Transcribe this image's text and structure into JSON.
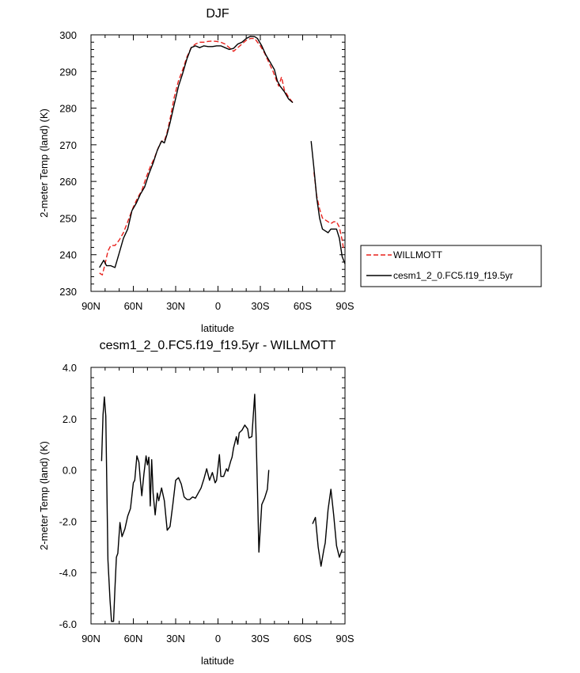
{
  "chart_data": [
    {
      "type": "line",
      "title": "DJF",
      "xlabel": "latitude",
      "ylabel": "2-meter Temp (land) (K)",
      "xlim": [
        90,
        -90
      ],
      "ylim": [
        230,
        300
      ],
      "x_tick_labels": [
        {
          "value": 90,
          "label": "90N"
        },
        {
          "value": 60,
          "label": "60N"
        },
        {
          "value": 30,
          "label": "30N"
        },
        {
          "value": 0,
          "label": "0"
        },
        {
          "value": -30,
          "label": "30S"
        },
        {
          "value": -60,
          "label": "60S"
        },
        {
          "value": -90,
          "label": "90S"
        }
      ],
      "y_tick_labels": [
        {
          "value": 230,
          "label": "230"
        },
        {
          "value": 240,
          "label": "240"
        },
        {
          "value": 250,
          "label": "250"
        },
        {
          "value": 260,
          "label": "260"
        },
        {
          "value": 270,
          "label": "270"
        },
        {
          "value": 280,
          "label": "280"
        },
        {
          "value": 290,
          "label": "290"
        },
        {
          "value": 300,
          "label": "300"
        }
      ],
      "legend_position": "right",
      "series": [
        {
          "name": "WILLMOTT",
          "color": "#e8211c",
          "dashed": true,
          "segments": [
            [
              [
                84,
                235
              ],
              [
                82,
                234.5
              ],
              [
                80,
                237.5
              ],
              [
                78,
                241
              ],
              [
                76,
                242.5
              ],
              [
                73,
                242.5
              ],
              [
                70,
                244
              ],
              [
                67,
                246
              ],
              [
                64,
                249
              ],
              [
                62,
                251
              ],
              [
                60,
                253
              ],
              [
                57,
                255.5
              ],
              [
                54,
                257.5
              ],
              [
                51,
                261
              ],
              [
                48,
                264
              ],
              [
                45,
                266.5
              ],
              [
                42,
                269.5
              ],
              [
                40,
                271
              ],
              [
                38,
                271
              ],
              [
                36,
                273.5
              ],
              [
                34,
                277
              ],
              [
                31,
                283
              ],
              [
                28,
                287.5
              ],
              [
                25,
                290.5
              ],
              [
                22,
                294
              ],
              [
                19,
                296.5
              ],
              [
                16,
                297.5
              ],
              [
                13,
                298
              ],
              [
                10,
                298
              ],
              [
                7,
                298.2
              ],
              [
                4,
                298.3
              ],
              [
                1,
                298.2
              ],
              [
                -2,
                298
              ],
              [
                -5,
                297.5
              ],
              [
                -8,
                296.5
              ],
              [
                -11,
                295.5
              ],
              [
                -14,
                296.5
              ],
              [
                -17,
                297.5
              ],
              [
                -20,
                298.5
              ],
              [
                -23,
                299
              ],
              [
                -26,
                299
              ],
              [
                -28,
                298
              ],
              [
                -30,
                297
              ],
              [
                -33,
                295
              ],
              [
                -36,
                292.5
              ],
              [
                -39,
                290
              ],
              [
                -41,
                288
              ],
              [
                -43,
                286
              ],
              [
                -45,
                288.5
              ],
              [
                -47,
                285
              ],
              [
                -50,
                283
              ],
              [
                -53,
                281.5
              ]
            ],
            [
              [
                -68,
                262.5
              ],
              [
                -70,
                256
              ],
              [
                -72,
                252.5
              ],
              [
                -74,
                250
              ],
              [
                -76,
                249.5
              ],
              [
                -78,
                249
              ],
              [
                -80,
                248.5
              ],
              [
                -82,
                249
              ],
              [
                -84,
                249
              ],
              [
                -86,
                247.5
              ],
              [
                -88,
                244
              ],
              [
                -89,
                241.5
              ]
            ]
          ]
        },
        {
          "name": "cesm1_2_0.FC5.f19_f19.5yr",
          "color": "#000000",
          "dashed": false,
          "segments": [
            [
              [
                84,
                236.5
              ],
              [
                81,
                238.5
              ],
              [
                79,
                237
              ],
              [
                76,
                237
              ],
              [
                73,
                236.5
              ],
              [
                70,
                240.5
              ],
              [
                67,
                244.5
              ],
              [
                64,
                247
              ],
              [
                61,
                252
              ],
              [
                58,
                254
              ],
              [
                55,
                256.5
              ],
              [
                52,
                258.5
              ],
              [
                49,
                262
              ],
              [
                46,
                265
              ],
              [
                43,
                268.5
              ],
              [
                40,
                271
              ],
              [
                38,
                270.5
              ],
              [
                36,
                273
              ],
              [
                34,
                276
              ],
              [
                31,
                281
              ],
              [
                28,
                286
              ],
              [
                25,
                289.5
              ],
              [
                22,
                293.5
              ],
              [
                19,
                296.5
              ],
              [
                16,
                297
              ],
              [
                13,
                296.5
              ],
              [
                10,
                297
              ],
              [
                7,
                296.8
              ],
              [
                4,
                296.8
              ],
              [
                1,
                297
              ],
              [
                -2,
                297
              ],
              [
                -5,
                296.5
              ],
              [
                -8,
                296
              ],
              [
                -11,
                296.3
              ],
              [
                -14,
                297.5
              ],
              [
                -17,
                298
              ],
              [
                -20,
                299
              ],
              [
                -23,
                299.6
              ],
              [
                -26,
                299.5
              ],
              [
                -28,
                299
              ],
              [
                -31,
                297
              ],
              [
                -34,
                294.5
              ],
              [
                -37,
                292.5
              ],
              [
                -40,
                290.5
              ],
              [
                -42,
                287.5
              ],
              [
                -44,
                286
              ],
              [
                -47,
                284.5
              ],
              [
                -50,
                282.5
              ],
              [
                -53,
                281.5
              ]
            ],
            [
              [
                -66,
                271
              ],
              [
                -68,
                263.5
              ],
              [
                -70,
                255.5
              ],
              [
                -72,
                250
              ],
              [
                -74,
                247
              ],
              [
                -76,
                246.5
              ],
              [
                -78,
                246
              ],
              [
                -80,
                247
              ],
              [
                -82,
                247
              ],
              [
                -84,
                247
              ],
              [
                -86,
                244.5
              ],
              [
                -88,
                239.5
              ],
              [
                -90,
                237.5
              ]
            ]
          ]
        }
      ]
    },
    {
      "type": "line",
      "title": "cesm1_2_0.FC5.f19_f19.5yr - WILLMOTT",
      "xlabel": "latitude",
      "ylabel": "2-meter Temp (land) (K)",
      "xlim": [
        90,
        -90
      ],
      "ylim": [
        -6.0,
        4.0
      ],
      "x_tick_labels": [
        {
          "value": 90,
          "label": "90N"
        },
        {
          "value": 60,
          "label": "60N"
        },
        {
          "value": 30,
          "label": "30N"
        },
        {
          "value": 0,
          "label": "0"
        },
        {
          "value": -30,
          "label": "30S"
        },
        {
          "value": -60,
          "label": "60S"
        },
        {
          "value": -90,
          "label": "90S"
        }
      ],
      "y_tick_labels": [
        {
          "value": -6.0,
          "label": "-6.0"
        },
        {
          "value": -4.0,
          "label": "-4.0"
        },
        {
          "value": -2.0,
          "label": "-2.0"
        },
        {
          "value": 0.0,
          "label": "0.0"
        },
        {
          "value": 2.0,
          "label": "2.0"
        },
        {
          "value": 4.0,
          "label": "4.0"
        }
      ],
      "series": [
        {
          "color": "#000000",
          "dashed": false,
          "segments": [
            [
              [
                82.5,
                0.35
              ],
              [
                81.5,
                2.15
              ],
              [
                80.5,
                2.85
              ],
              [
                79.5,
                2.1
              ],
              [
                78,
                -3.5
              ],
              [
                76.5,
                -5.1
              ],
              [
                75.5,
                -5.9
              ],
              [
                74,
                -5.9
              ],
              [
                73,
                -4.6
              ],
              [
                72,
                -3.4
              ],
              [
                71,
                -3.25
              ],
              [
                69.5,
                -2.05
              ],
              [
                68,
                -2.6
              ],
              [
                66,
                -2.3
              ],
              [
                64,
                -1.8
              ],
              [
                62,
                -1.5
              ],
              [
                60,
                -0.5
              ],
              [
                59,
                -0.4
              ],
              [
                57.5,
                0.55
              ],
              [
                56,
                0.3
              ],
              [
                55,
                -0.4
              ],
              [
                54,
                -1.0
              ],
              [
                52.5,
                -0.15
              ],
              [
                51,
                0.55
              ],
              [
                50,
                0.2
              ],
              [
                49,
                0.5
              ],
              [
                48,
                -1.4
              ],
              [
                47,
                0.4
              ],
              [
                46,
                -0.9
              ],
              [
                44.5,
                -1.75
              ],
              [
                43,
                -0.9
              ],
              [
                42,
                -1.2
              ],
              [
                40,
                -0.7
              ],
              [
                38,
                -1.2
              ],
              [
                36,
                -2.35
              ],
              [
                34,
                -2.2
              ],
              [
                32,
                -1.35
              ],
              [
                30,
                -0.4
              ],
              [
                28,
                -0.3
              ],
              [
                26,
                -0.55
              ],
              [
                24,
                -1.05
              ],
              [
                22,
                -1.15
              ],
              [
                20,
                -1.15
              ],
              [
                18,
                -1.05
              ],
              [
                16,
                -1.1
              ],
              [
                14,
                -0.9
              ],
              [
                12,
                -0.7
              ],
              [
                10,
                -0.35
              ],
              [
                8,
                0.05
              ],
              [
                6,
                -0.4
              ],
              [
                4,
                -0.1
              ],
              [
                2,
                -0.5
              ],
              [
                1,
                -0.4
              ],
              [
                -1,
                0.6
              ],
              [
                -2,
                -0.25
              ],
              [
                -4,
                -0.25
              ],
              [
                -6,
                0.05
              ],
              [
                -7,
                -0.05
              ],
              [
                -9,
                0.35
              ],
              [
                -10,
                0.5
              ],
              [
                -11,
                0.85
              ],
              [
                -13,
                1.3
              ],
              [
                -14,
                1.0
              ],
              [
                -15,
                1.45
              ],
              [
                -17,
                1.55
              ],
              [
                -19,
                1.75
              ],
              [
                -21,
                1.6
              ],
              [
                -22,
                1.25
              ],
              [
                -24,
                1.3
              ],
              [
                -26,
                2.95
              ],
              [
                -27,
                1.4
              ],
              [
                -28,
                -0.8
              ],
              [
                -29,
                -3.2
              ],
              [
                -31,
                -1.35
              ],
              [
                -33,
                -1.1
              ],
              [
                -35,
                -0.75
              ],
              [
                -36,
                0.0
              ]
            ],
            [
              [
                -67,
                -2.1
              ],
              [
                -69,
                -1.85
              ],
              [
                -71,
                -3.0
              ],
              [
                -73,
                -3.75
              ],
              [
                -75,
                -3.1
              ],
              [
                -76,
                -2.85
              ],
              [
                -78,
                -1.55
              ],
              [
                -80,
                -0.75
              ],
              [
                -82,
                -1.75
              ],
              [
                -84,
                -2.95
              ],
              [
                -86,
                -3.4
              ],
              [
                -88,
                -3.1
              ]
            ]
          ]
        }
      ]
    }
  ]
}
